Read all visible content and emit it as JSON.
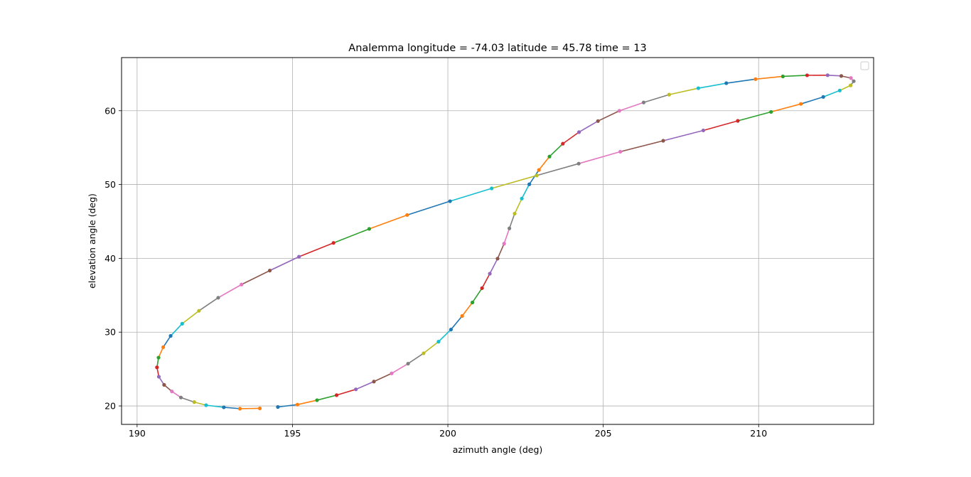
{
  "chart_data": {
    "type": "line",
    "title": "Analemma longitude = -74.03 latitude = 45.78 time = 13",
    "xlabel": "azimuth angle (deg)",
    "ylabel": "elevation angle (deg)",
    "xlim": [
      189.5,
      213.7
    ],
    "ylim": [
      17.5,
      67.2
    ],
    "xticks": [
      190,
      195,
      200,
      205,
      210
    ],
    "yticks": [
      20,
      30,
      40,
      50,
      60
    ],
    "grid": true,
    "legend": "top-right",
    "marker": "dot",
    "color_cycle": [
      "#1f77b4",
      "#ff7f0e",
      "#2ca02c",
      "#d62728",
      "#9467bd",
      "#8c564b",
      "#e377c2",
      "#7f7f7f",
      "#bcbd22",
      "#17becf"
    ],
    "points": [
      [
        194.53,
        19.86
      ],
      [
        195.16,
        20.18
      ],
      [
        195.79,
        20.78
      ],
      [
        196.42,
        21.46
      ],
      [
        197.04,
        22.25
      ],
      [
        197.62,
        23.3
      ],
      [
        198.19,
        24.41
      ],
      [
        198.72,
        25.73
      ],
      [
        199.22,
        27.14
      ],
      [
        199.7,
        28.71
      ],
      [
        200.1,
        30.35
      ],
      [
        200.46,
        32.19
      ],
      [
        200.79,
        34.02
      ],
      [
        201.1,
        35.96
      ],
      [
        201.35,
        37.92
      ],
      [
        201.6,
        39.96
      ],
      [
        201.81,
        41.99
      ],
      [
        201.98,
        44.06
      ],
      [
        202.15,
        46.06
      ],
      [
        202.38,
        48.1
      ],
      [
        202.62,
        50.03
      ],
      [
        202.93,
        51.97
      ],
      [
        203.27,
        53.79
      ],
      [
        203.7,
        55.53
      ],
      [
        204.22,
        57.1
      ],
      [
        204.83,
        58.6
      ],
      [
        205.52,
        59.99
      ],
      [
        206.3,
        61.12
      ],
      [
        207.12,
        62.18
      ],
      [
        208.06,
        63.05
      ],
      [
        208.96,
        63.73
      ],
      [
        209.9,
        64.28
      ],
      [
        210.78,
        64.65
      ],
      [
        211.56,
        64.8
      ],
      [
        212.22,
        64.81
      ],
      [
        212.66,
        64.71
      ],
      [
        212.97,
        64.43
      ],
      [
        213.06,
        64.0
      ],
      [
        212.96,
        63.43
      ],
      [
        212.61,
        62.74
      ],
      [
        212.08,
        61.87
      ],
      [
        211.36,
        60.92
      ],
      [
        210.4,
        59.84
      ],
      [
        209.33,
        58.63
      ],
      [
        208.22,
        57.33
      ],
      [
        206.93,
        55.93
      ],
      [
        205.55,
        54.45
      ],
      [
        204.21,
        52.83
      ],
      [
        202.86,
        51.22
      ],
      [
        201.41,
        49.48
      ],
      [
        200.07,
        47.74
      ],
      [
        198.69,
        45.87
      ],
      [
        197.47,
        43.99
      ],
      [
        196.32,
        42.09
      ],
      [
        195.21,
        40.22
      ],
      [
        194.27,
        38.34
      ],
      [
        193.36,
        36.45
      ],
      [
        192.61,
        34.66
      ],
      [
        191.99,
        32.89
      ],
      [
        191.45,
        31.14
      ],
      [
        191.08,
        29.49
      ],
      [
        190.84,
        27.96
      ],
      [
        190.69,
        26.55
      ],
      [
        190.64,
        25.23
      ],
      [
        190.7,
        23.96
      ],
      [
        190.87,
        22.86
      ],
      [
        191.12,
        21.97
      ],
      [
        191.41,
        21.14
      ],
      [
        191.84,
        20.52
      ],
      [
        192.22,
        20.1
      ],
      [
        192.79,
        19.82
      ],
      [
        193.31,
        19.63
      ],
      [
        193.95,
        19.67
      ]
    ]
  }
}
